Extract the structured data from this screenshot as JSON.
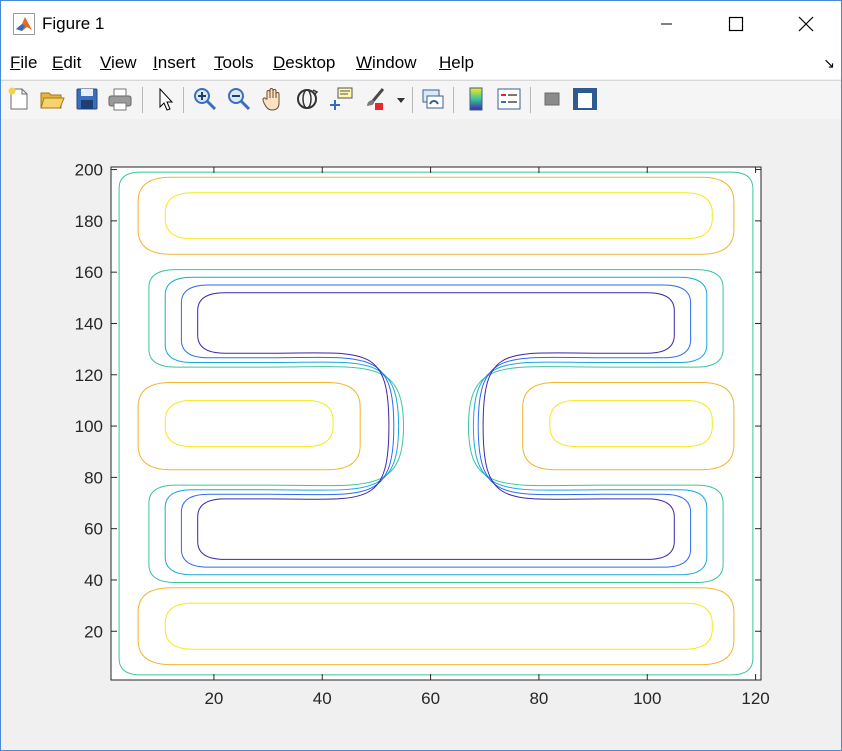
{
  "window": {
    "title": "Figure 1"
  },
  "menu": {
    "items": [
      {
        "pre": "",
        "acc": "F",
        "post": "ile"
      },
      {
        "pre": "",
        "acc": "E",
        "post": "dit"
      },
      {
        "pre": "",
        "acc": "V",
        "post": "iew"
      },
      {
        "pre": "",
        "acc": "I",
        "post": "nsert"
      },
      {
        "pre": "",
        "acc": "T",
        "post": "ools"
      },
      {
        "pre": "",
        "acc": "D",
        "post": "esktop"
      },
      {
        "pre": "",
        "acc": "W",
        "post": "indow"
      },
      {
        "pre": "",
        "acc": "H",
        "post": "elp"
      }
    ],
    "dock_glyph": "↘"
  },
  "toolbar": {
    "icons": [
      "new-figure-icon",
      "open-file-icon",
      "save-icon",
      "print-icon",
      "edit-plot-arrow-icon",
      "zoom-in-icon",
      "zoom-out-icon",
      "pan-hand-icon",
      "rotate-3d-icon",
      "data-cursor-icon",
      "brush-icon",
      "brush-dropdown-icon",
      "link-plot-icon",
      "colorbar-icon",
      "legend-icon",
      "hide-plot-tools-icon",
      "show-plot-tools-icon"
    ]
  },
  "colors": {
    "level1": "#3e26a8",
    "level2": "#2e6bf0",
    "level3": "#19a9db",
    "level4": "#3cc59b",
    "level5": "#b4bd37",
    "level6": "#f2b52e",
    "level7": "#f9e81b"
  },
  "chart_data": {
    "type": "contour",
    "title": "",
    "xlabel": "",
    "ylabel": "",
    "xlim": [
      1,
      121
    ],
    "ylim": [
      1,
      201
    ],
    "xticks": [
      20,
      40,
      60,
      80,
      100,
      120
    ],
    "yticks": [
      20,
      40,
      60,
      80,
      100,
      120,
      140,
      160,
      180,
      200
    ],
    "grid": false,
    "colormap": "parula",
    "levels": 7,
    "structures": [
      {
        "kind": "low",
        "x_center": 61,
        "y_center": 100,
        "x_extent": [
          18,
          106
        ],
        "y_extent": [
          48,
          155
        ]
      },
      {
        "kind": "high",
        "x_center": 62,
        "y_center": 182,
        "x_extent": [
          10,
          112
        ]
      },
      {
        "kind": "high",
        "x_center": 62,
        "y_center": 20,
        "x_extent": [
          10,
          112
        ]
      },
      {
        "kind": "high",
        "x_center": 25,
        "y_center": 100,
        "x_extent": [
          10,
          42
        ]
      },
      {
        "kind": "high",
        "x_center": 98,
        "y_center": 100,
        "x_extent": [
          82,
          112
        ]
      }
    ]
  }
}
